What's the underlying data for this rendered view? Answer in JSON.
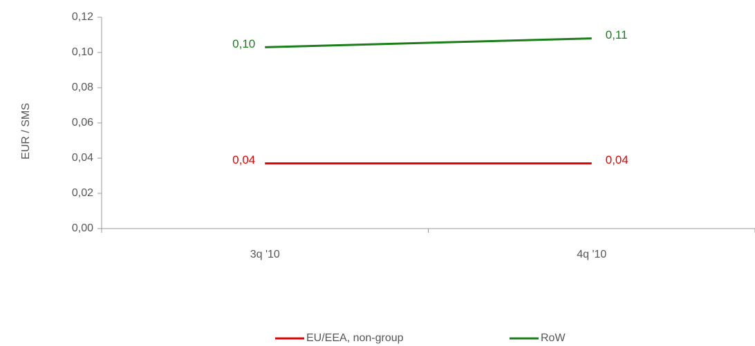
{
  "chart_data": {
    "type": "line",
    "y_label": "EUR / SMS",
    "categories": [
      "3q '10",
      "4q '10"
    ],
    "series": [
      {
        "name": "EU/EEA, non-group",
        "color": "#e00000",
        "values": [
          0.037,
          0.037
        ],
        "value_labels": [
          "0,04",
          "0,04"
        ]
      },
      {
        "name": "RoW",
        "color": "#1a7d1a",
        "values": [
          0.103,
          0.108
        ],
        "value_labels": [
          "0,10",
          "0,11"
        ]
      }
    ],
    "ylim": [
      0,
      0.12
    ],
    "yticks": [
      {
        "value": 0,
        "label": "0,00"
      },
      {
        "value": 0.02,
        "label": "0,02"
      },
      {
        "value": 0.04,
        "label": "0,04"
      },
      {
        "value": 0.06,
        "label": "0,06"
      },
      {
        "value": 0.08,
        "label": "0,08"
      },
      {
        "value": 0.1,
        "label": "0,10"
      },
      {
        "value": 0.12,
        "label": "0,12"
      }
    ],
    "grid": false,
    "legend": "bottom"
  }
}
